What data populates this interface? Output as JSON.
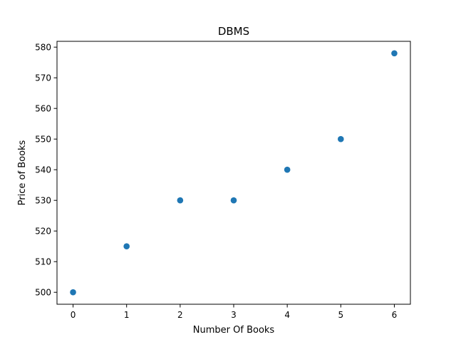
{
  "chart_data": {
    "type": "scatter",
    "title": "DBMS",
    "xlabel": "Number Of Books",
    "ylabel": "Price of Books",
    "x": [
      0,
      1,
      2,
      3,
      4,
      5,
      6
    ],
    "y": [
      500,
      515,
      530,
      530,
      540,
      550,
      578
    ],
    "xlim": [
      -0.3,
      6.3
    ],
    "ylim": [
      496.1,
      581.9
    ],
    "xticks": [
      0,
      1,
      2,
      3,
      4,
      5,
      6
    ],
    "yticks": [
      500,
      510,
      520,
      530,
      540,
      550,
      560,
      570,
      580
    ],
    "grid": false,
    "legend": "none",
    "marker_color": "#1f77b4"
  }
}
